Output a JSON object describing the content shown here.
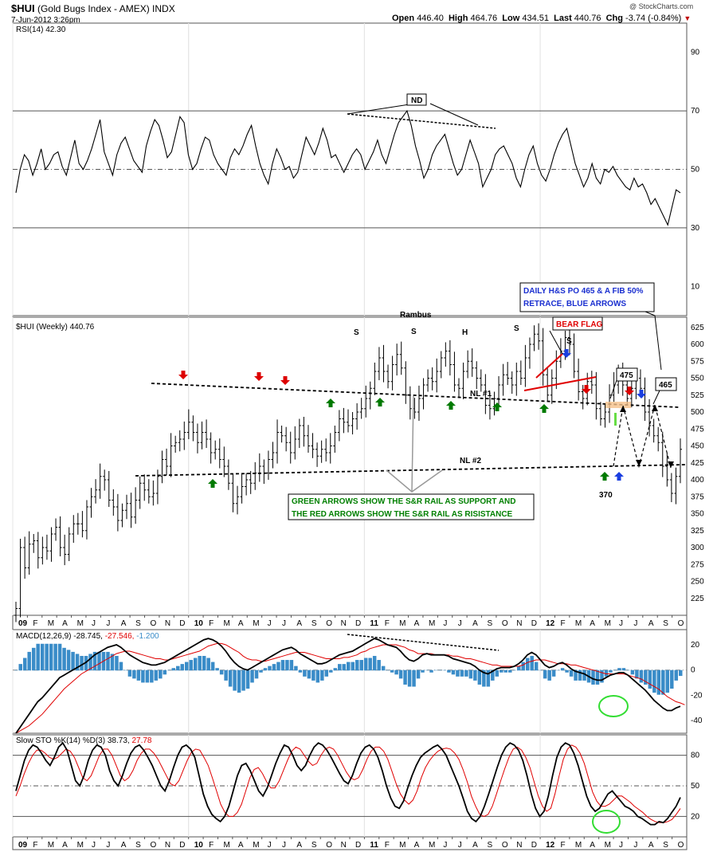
{
  "header": {
    "symbol": "$HUI",
    "name": "(Gold Bugs Index - AMEX)",
    "exchange": "INDX",
    "date": "7-Jun-2012 3:26pm",
    "open_label": "Open",
    "open": "446.40",
    "high_label": "High",
    "high": "464.76",
    "low_label": "Low",
    "low": "434.51",
    "last_label": "Last",
    "last": "440.76",
    "chg_label": "Chg",
    "chg": "-3.74 (-0.84%)",
    "copyright": "@ StockCharts.com"
  },
  "chart_data": [
    {
      "type": "line",
      "panel": "rsi",
      "legend": "RSI(14) 42.30",
      "y_ticks": [
        "90",
        "70",
        "50",
        "30",
        "10"
      ],
      "ylim": [
        0,
        100
      ],
      "reference_lines": [
        70,
        50,
        30
      ],
      "values": [
        42,
        50,
        55,
        53,
        48,
        52,
        57,
        50,
        52,
        55,
        56,
        51,
        48,
        54,
        60,
        52,
        50,
        53,
        57,
        62,
        67,
        56,
        52,
        48,
        55,
        59,
        61,
        57,
        53,
        51,
        49,
        58,
        63,
        67,
        65,
        60,
        54,
        56,
        62,
        68,
        66,
        55,
        50,
        52,
        57,
        61,
        60,
        55,
        52,
        50,
        48,
        54,
        57,
        55,
        58,
        62,
        65,
        58,
        52,
        48,
        45,
        52,
        57,
        54,
        50,
        51,
        47,
        49,
        55,
        61,
        58,
        55,
        59,
        64,
        60,
        54,
        55,
        52,
        49,
        52,
        55,
        57,
        55,
        50,
        53,
        56,
        60,
        55,
        52,
        57,
        62,
        66,
        68,
        70,
        65,
        58,
        53,
        47,
        50,
        55,
        58,
        60,
        62,
        57,
        52,
        48,
        50,
        55,
        60,
        56,
        52,
        44,
        47,
        50,
        55,
        57,
        58,
        55,
        52,
        47,
        44,
        50,
        55,
        58,
        52,
        48,
        46,
        50,
        55,
        59,
        62,
        64,
        58,
        52,
        48,
        44,
        47,
        52,
        47,
        45,
        50,
        49,
        51,
        48,
        46,
        44,
        43,
        47,
        44,
        45,
        42,
        38,
        40,
        37,
        34,
        31,
        37,
        43,
        42
      ],
      "annotations": [
        "ND"
      ]
    },
    {
      "type": "bar",
      "subtype": "ohlc",
      "panel": "price",
      "legend": "$HUI (Weekly) 440.76",
      "title": "Rambus",
      "y_ticks": [
        "625",
        "600",
        "575",
        "550",
        "525",
        "500",
        "475",
        "450",
        "425",
        "400",
        "375",
        "350",
        "325",
        "300",
        "275",
        "250",
        "225"
      ],
      "ylim": [
        200,
        640
      ],
      "x_ticks": [
        "09",
        "F",
        "M",
        "A",
        "M",
        "J",
        "J",
        "A",
        "S",
        "O",
        "N",
        "D",
        "10",
        "F",
        "M",
        "A",
        "M",
        "J",
        "J",
        "A",
        "S",
        "O",
        "N",
        "D",
        "11",
        "F",
        "M",
        "A",
        "M",
        "J",
        "J",
        "A",
        "S",
        "O",
        "N",
        "D",
        "12",
        "F",
        "M",
        "A",
        "M",
        "J",
        "J",
        "A",
        "S",
        "O"
      ],
      "close": [
        210,
        300,
        270,
        305,
        310,
        285,
        300,
        295,
        320,
        330,
        300,
        290,
        320,
        335,
        335,
        325,
        360,
        375,
        385,
        405,
        400,
        370,
        360,
        340,
        355,
        365,
        345,
        370,
        395,
        385,
        375,
        380,
        405,
        430,
        420,
        450,
        455,
        460,
        470,
        485,
        470,
        455,
        470,
        460,
        440,
        445,
        430,
        420,
        395,
        365,
        375,
        390,
        400,
        395,
        410,
        420,
        410,
        430,
        440,
        470,
        465,
        455,
        440,
        460,
        480,
        465,
        450,
        445,
        435,
        445,
        440,
        450,
        470,
        490,
        485,
        480,
        490,
        500,
        505,
        520,
        535,
        560,
        580,
        560,
        545,
        570,
        585,
        565,
        525,
        505,
        500,
        520,
        540,
        550,
        545,
        560,
        580,
        590,
        570,
        540,
        535,
        560,
        575,
        565,
        550,
        540,
        510,
        505,
        520,
        540,
        555,
        550,
        540,
        560,
        550,
        580,
        600,
        615,
        605,
        555,
        525,
        550,
        575,
        590,
        610,
        600,
        560,
        530,
        520,
        545,
        540,
        505,
        490,
        500,
        525,
        540,
        560,
        540,
        520,
        535,
        550,
        535,
        500,
        480,
        465,
        455,
        420,
        400,
        380,
        405,
        445
      ],
      "annotations": [
        "S",
        "S",
        "H",
        "S",
        "S",
        "NL #1",
        "NL #2",
        "BEAR FLAG",
        "475",
        "465",
        "370",
        "DAILY H&S PO 465 & A FIB 50%",
        "RETRACE, BLUE ARROWS",
        "GREEN ARROWS SHOW THE S&R RAIL AS SUPPORT AND",
        "THE RED ARROWS SHOW THE S&R RAIL AS RISISTANCE"
      ]
    },
    {
      "type": "line",
      "panel": "macd",
      "legend_name": "MACD(12,26,9)",
      "legend_macd": "-28.745",
      "legend_signal": "-27.546",
      "legend_hist": "-1.200",
      "y_ticks": [
        "20",
        "0",
        "-20",
        "-40"
      ],
      "ylim": [
        -50,
        32
      ],
      "macd": [
        -50,
        -45,
        -40,
        -35,
        -30,
        -25,
        -22,
        -18,
        -14,
        -10,
        -6,
        -4,
        -2,
        0,
        2,
        4,
        6,
        9,
        12,
        14,
        16,
        18,
        19,
        20,
        18,
        15,
        12,
        10,
        8,
        6,
        5,
        4,
        4,
        5,
        6,
        8,
        10,
        12,
        14,
        16,
        18,
        20,
        22,
        24,
        25,
        24,
        22,
        19,
        15,
        10,
        6,
        3,
        1,
        0,
        2,
        4,
        6,
        8,
        10,
        12,
        14,
        16,
        17,
        18,
        16,
        13,
        11,
        9,
        7,
        5,
        5,
        6,
        8,
        10,
        12,
        13,
        14,
        15,
        17,
        19,
        21,
        23,
        25,
        24,
        22,
        20,
        19,
        18,
        15,
        11,
        8,
        7,
        9,
        12,
        13,
        12,
        12,
        12,
        12,
        11,
        9,
        8,
        7,
        6,
        5,
        3,
        0,
        -2,
        -3,
        -1,
        1,
        2,
        2,
        2,
        3,
        5,
        8,
        12,
        14,
        12,
        8,
        4,
        2,
        3,
        5,
        6,
        4,
        1,
        -1,
        -2,
        -3,
        -5,
        -7,
        -8,
        -8,
        -6,
        -4,
        -3,
        -2,
        -2,
        -4,
        -7,
        -10,
        -13,
        -16,
        -20,
        -24,
        -27,
        -30,
        -32,
        -32,
        -30,
        -28.7
      ],
      "signal": [
        -50,
        -48,
        -46,
        -44,
        -41,
        -38,
        -35,
        -31,
        -27,
        -23,
        -19,
        -15,
        -12,
        -9,
        -6,
        -3,
        -1,
        1,
        3,
        5,
        7,
        9,
        11,
        13,
        14,
        15,
        15,
        14,
        13,
        12,
        11,
        10,
        9,
        9,
        8,
        8,
        9,
        10,
        11,
        12,
        13,
        14,
        15,
        17,
        19,
        20,
        21,
        21,
        20,
        18,
        16,
        14,
        11,
        9,
        8,
        8,
        7,
        7,
        8,
        9,
        10,
        11,
        12,
        13,
        14,
        14,
        14,
        13,
        12,
        11,
        10,
        9,
        9,
        9,
        9,
        10,
        10,
        11,
        12,
        14,
        15,
        17,
        18,
        19,
        20,
        20,
        20,
        20,
        19,
        18,
        16,
        15,
        13,
        13,
        13,
        13,
        12,
        12,
        12,
        12,
        11,
        11,
        10,
        9,
        9,
        8,
        7,
        6,
        5,
        4,
        4,
        3,
        3,
        3,
        3,
        3,
        4,
        6,
        7,
        8,
        8,
        8,
        7,
        6,
        5,
        5,
        5,
        4,
        4,
        3,
        2,
        1,
        0,
        -1,
        -2,
        -3,
        -3,
        -3,
        -3,
        -3,
        -4,
        -5,
        -6,
        -7,
        -9,
        -11,
        -13,
        -15,
        -18,
        -21,
        -23,
        -25,
        -26,
        -27.5
      ],
      "annotations": []
    },
    {
      "type": "line",
      "panel": "stochastic",
      "legend_name": "Slow STO %K(14) %D(3)",
      "legend_k": "38.73",
      "legend_d": "27.78",
      "y_ticks": [
        "80",
        "50",
        "20"
      ],
      "ylim": [
        0,
        100
      ],
      "reference_lines": [
        80,
        50,
        20
      ],
      "k": [
        45,
        60,
        75,
        85,
        90,
        88,
        82,
        75,
        70,
        78,
        88,
        92,
        85,
        70,
        55,
        50,
        60,
        75,
        85,
        90,
        88,
        80,
        65,
        55,
        50,
        60,
        72,
        82,
        88,
        90,
        85,
        78,
        70,
        60,
        50,
        45,
        55,
        68,
        80,
        88,
        90,
        86,
        78,
        60,
        42,
        30,
        22,
        18,
        15,
        20,
        30,
        45,
        60,
        70,
        72,
        65,
        55,
        45,
        40,
        48,
        60,
        72,
        82,
        90,
        88,
        80,
        70,
        65,
        70,
        80,
        88,
        92,
        90,
        85,
        78,
        70,
        62,
        55,
        52,
        60,
        72,
        82,
        88,
        90,
        86,
        78,
        65,
        50,
        38,
        30,
        28,
        35,
        48,
        60,
        70,
        78,
        82,
        85,
        88,
        90,
        86,
        80,
        70,
        60,
        50,
        38,
        25,
        18,
        15,
        20,
        30,
        42,
        55,
        68,
        80,
        88,
        92,
        90,
        85,
        75,
        60,
        42,
        28,
        20,
        25,
        40,
        60,
        78,
        88,
        92,
        90,
        82,
        70,
        55,
        40,
        30,
        25,
        28,
        35,
        42,
        45,
        40,
        35,
        30,
        28,
        25,
        20,
        18,
        15,
        12,
        12,
        15,
        14,
        18,
        24,
        30,
        38.7
      ],
      "d": [
        40,
        50,
        62,
        72,
        80,
        85,
        85,
        82,
        78,
        76,
        78,
        82,
        86,
        84,
        78,
        68,
        58,
        55,
        60,
        70,
        80,
        86,
        86,
        80,
        70,
        60,
        55,
        58,
        65,
        75,
        82,
        86,
        86,
        82,
        76,
        68,
        60,
        52,
        50,
        55,
        65,
        75,
        83,
        86,
        85,
        78,
        70,
        58,
        45,
        32,
        24,
        20,
        20,
        24,
        32,
        45,
        58,
        66,
        68,
        62,
        54,
        48,
        48,
        55,
        65,
        75,
        84,
        88,
        86,
        80,
        74,
        70,
        72,
        80,
        86,
        88,
        86,
        80,
        72,
        64,
        58,
        56,
        58,
        66,
        76,
        84,
        88,
        88,
        84,
        76,
        64,
        52,
        42,
        36,
        32,
        36,
        45,
        58,
        68,
        75,
        80,
        84,
        86,
        87,
        86,
        82,
        76,
        66,
        54,
        40,
        30,
        22,
        20,
        22,
        30,
        42,
        55,
        67,
        78,
        86,
        88,
        85,
        78,
        68,
        54,
        40,
        30,
        25,
        28,
        42,
        60,
        76,
        86,
        90,
        88,
        82,
        72,
        58,
        44,
        35,
        30,
        30,
        32,
        36,
        40,
        40,
        37,
        34,
        30,
        27,
        24,
        20,
        17,
        15,
        14,
        14,
        15,
        17,
        22,
        27.8
      ],
      "annotations": []
    }
  ]
}
